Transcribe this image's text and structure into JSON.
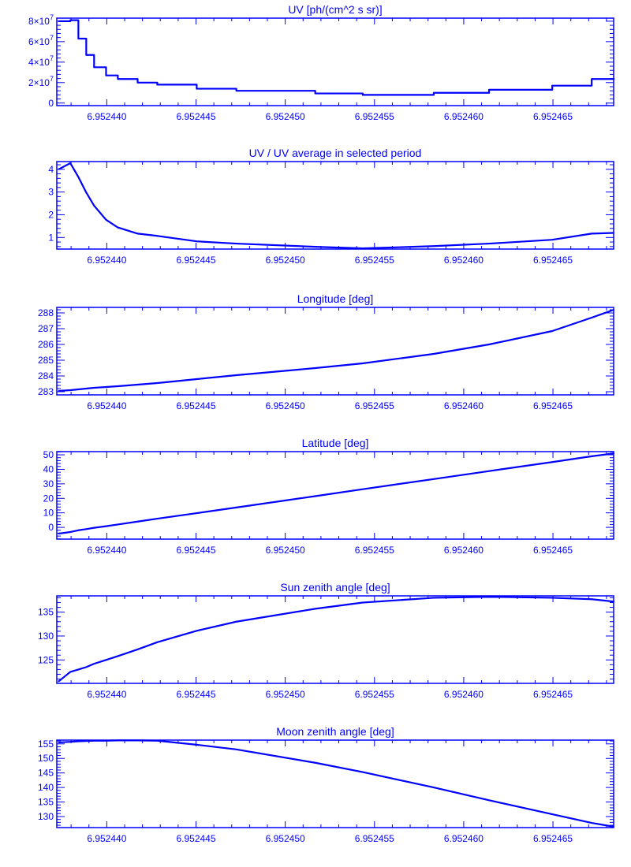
{
  "color": "#0000ff",
  "chart_data": [
    {
      "type": "line",
      "title": "UV [ph/(cm^2 s sr)]",
      "xlim": [
        6.9524372,
        6.9524684
      ],
      "ylim": [
        -2500000,
        83000000
      ],
      "xticks": [
        6.95244,
        6.952445,
        6.95245,
        6.952455,
        6.95246,
        6.952465
      ],
      "xtick_labels": [
        "6.952440",
        "6.952445",
        "6.952450",
        "6.952455",
        "6.952460",
        "6.952465"
      ],
      "yticks": [
        0,
        20000000,
        40000000,
        60000000,
        80000000
      ],
      "ytick_labels": [
        {
          "m": "0",
          "e": ""
        },
        {
          "m": "2×10",
          "e": "7"
        },
        {
          "m": "4×10",
          "e": "7"
        },
        {
          "m": "6×10",
          "e": "7"
        },
        {
          "m": "8×10",
          "e": "7"
        }
      ],
      "step": true,
      "x": [
        6.9524373,
        6.95243796,
        6.95243841,
        6.95243885,
        6.95243929,
        6.95243996,
        6.95244062,
        6.95244173,
        6.95244283,
        6.95244504,
        6.95244726,
        6.95245168,
        6.95245434,
        6.95245832,
        6.95246142,
        6.95246496,
        6.95246717,
        6.95246841
      ],
      "y": [
        80000000,
        81000000,
        63000000,
        47000000,
        35000000,
        27000000,
        23500000,
        20000000,
        18000000,
        14000000,
        12000000,
        9400000,
        8000000,
        10000000,
        13000000,
        17000000,
        23500000,
        23000000
      ]
    },
    {
      "type": "line",
      "title": "UV / UV average in selected period",
      "xlim": [
        6.9524372,
        6.9524684
      ],
      "ylim": [
        0.49,
        4.34
      ],
      "xticks": [
        6.95244,
        6.952445,
        6.95245,
        6.952455,
        6.95246,
        6.952465
      ],
      "xtick_labels": [
        "6.952440",
        "6.952445",
        "6.952450",
        "6.952455",
        "6.952460",
        "6.952465"
      ],
      "yticks": [
        1,
        2,
        3,
        4
      ],
      "ytick_labels": [
        {
          "m": "1",
          "e": ""
        },
        {
          "m": "2",
          "e": ""
        },
        {
          "m": "3",
          "e": ""
        },
        {
          "m": "4",
          "e": ""
        }
      ],
      "x": [
        6.9524373,
        6.95243796,
        6.95243841,
        6.95243885,
        6.95243929,
        6.95243996,
        6.95244062,
        6.95244173,
        6.95244283,
        6.95244504,
        6.95244726,
        6.95245168,
        6.95245434,
        6.95245832,
        6.95246142,
        6.95246496,
        6.95246717,
        6.95246841
      ],
      "y": [
        4.0,
        4.27,
        3.66,
        2.98,
        2.4,
        1.78,
        1.44,
        1.17,
        1.07,
        0.83,
        0.73,
        0.59,
        0.52,
        0.62,
        0.73,
        0.9,
        1.17,
        1.2
      ]
    },
    {
      "type": "line",
      "title": "Longitude [deg]",
      "xlim": [
        6.9524372,
        6.9524684
      ],
      "ylim": [
        282.8,
        288.35
      ],
      "xticks": [
        6.95244,
        6.952445,
        6.95245,
        6.952455,
        6.95246,
        6.952465
      ],
      "xtick_labels": [
        "6.952440",
        "6.952445",
        "6.952450",
        "6.952455",
        "6.952460",
        "6.952465"
      ],
      "yticks": [
        283,
        284,
        285,
        286,
        287,
        288
      ],
      "ytick_labels": [
        {
          "m": "283",
          "e": ""
        },
        {
          "m": "284",
          "e": ""
        },
        {
          "m": "285",
          "e": ""
        },
        {
          "m": "286",
          "e": ""
        },
        {
          "m": "287",
          "e": ""
        },
        {
          "m": "288",
          "e": ""
        }
      ],
      "x": [
        6.9524373,
        6.95243796,
        6.95243841,
        6.95243885,
        6.95243929,
        6.95243996,
        6.95244062,
        6.95244173,
        6.95244283,
        6.95244504,
        6.95244726,
        6.95245168,
        6.95245434,
        6.95245832,
        6.95246142,
        6.95246496,
        6.95246717,
        6.95246841
      ],
      "y": [
        283.05,
        283.1,
        283.15,
        283.2,
        283.25,
        283.3,
        283.35,
        283.45,
        283.55,
        283.8,
        284.05,
        284.5,
        284.8,
        285.4,
        286.0,
        286.85,
        287.7,
        288.2
      ]
    },
    {
      "type": "line",
      "title": "Latitude [deg]",
      "xlim": [
        6.9524372,
        6.9524684
      ],
      "ylim": [
        -8.1,
        52.2
      ],
      "xticks": [
        6.95244,
        6.952445,
        6.95245,
        6.952455,
        6.95246,
        6.952465
      ],
      "xtick_labels": [
        "6.952440",
        "6.952445",
        "6.952450",
        "6.952455",
        "6.952460",
        "6.952465"
      ],
      "yticks": [
        0,
        10,
        20,
        30,
        40,
        50
      ],
      "ytick_labels": [
        {
          "m": "0",
          "e": ""
        },
        {
          "m": "10",
          "e": ""
        },
        {
          "m": "20",
          "e": ""
        },
        {
          "m": "30",
          "e": ""
        },
        {
          "m": "40",
          "e": ""
        },
        {
          "m": "50",
          "e": ""
        }
      ],
      "x": [
        6.9524373,
        6.95243796,
        6.95243841,
        6.95243885,
        6.95243929,
        6.95243996,
        6.95244062,
        6.95244173,
        6.95244283,
        6.95244504,
        6.95244726,
        6.95245168,
        6.95245434,
        6.95245832,
        6.95246142,
        6.95246496,
        6.95246717,
        6.95246841
      ],
      "y": [
        -4.3,
        -3.2,
        -2.0,
        -1.2,
        -0.3,
        0.8,
        2.0,
        4.0,
        6.0,
        9.8,
        13.7,
        21.5,
        26.3,
        33.3,
        38.8,
        45.0,
        49.0,
        51.0
      ]
    },
    {
      "type": "line",
      "title": "Sun zenith angle [deg]",
      "xlim": [
        6.9524372,
        6.9524684
      ],
      "ylim": [
        120.1,
        138.4
      ],
      "xticks": [
        6.95244,
        6.952445,
        6.95245,
        6.952455,
        6.95246,
        6.952465
      ],
      "xtick_labels": [
        "6.952440",
        "6.952445",
        "6.952450",
        "6.952455",
        "6.952460",
        "6.952465"
      ],
      "yticks": [
        125,
        130,
        135
      ],
      "ytick_labels": [
        {
          "m": "125",
          "e": ""
        },
        {
          "m": "130",
          "e": ""
        },
        {
          "m": "135",
          "e": ""
        }
      ],
      "x": [
        6.9524373,
        6.95243796,
        6.95243841,
        6.95243885,
        6.95243929,
        6.95243996,
        6.95244062,
        6.95244173,
        6.95244283,
        6.95244504,
        6.95244726,
        6.95245168,
        6.95245434,
        6.95245832,
        6.95246142,
        6.95246496,
        6.95246717,
        6.95246841
      ],
      "y": [
        120.5,
        122.5,
        123.0,
        123.5,
        124.2,
        125.0,
        125.8,
        127.2,
        128.7,
        131.1,
        133.0,
        135.7,
        137.0,
        138.0,
        138.2,
        138.0,
        137.7,
        137.2
      ]
    },
    {
      "type": "line",
      "title": "Moon zenith angle [deg]",
      "xlim": [
        6.9524372,
        6.9524684
      ],
      "ylim": [
        126.2,
        156.3
      ],
      "xticks": [
        6.95244,
        6.952445,
        6.95245,
        6.952455,
        6.95246,
        6.952465
      ],
      "xtick_labels": [
        "6.952440",
        "6.952445",
        "6.952450",
        "6.952455",
        "6.952460",
        "6.952465"
      ],
      "yticks": [
        130,
        135,
        140,
        145,
        150,
        155
      ],
      "ytick_labels": [
        {
          "m": "130",
          "e": ""
        },
        {
          "m": "135",
          "e": ""
        },
        {
          "m": "140",
          "e": ""
        },
        {
          "m": "145",
          "e": ""
        },
        {
          "m": "150",
          "e": ""
        },
        {
          "m": "155",
          "e": ""
        }
      ],
      "x": [
        6.9524373,
        6.95243796,
        6.95243841,
        6.95243885,
        6.95243929,
        6.95243996,
        6.95244062,
        6.95244173,
        6.95244283,
        6.95244504,
        6.95244726,
        6.95245168,
        6.95245434,
        6.95245832,
        6.95246142,
        6.95246496,
        6.95246717,
        6.95246841
      ],
      "y": [
        155.5,
        155.7,
        155.9,
        156.0,
        156.1,
        156.1,
        156.2,
        156.2,
        156.1,
        154.7,
        153.1,
        148.5,
        145.3,
        140.0,
        135.6,
        130.8,
        127.8,
        126.5
      ]
    }
  ]
}
